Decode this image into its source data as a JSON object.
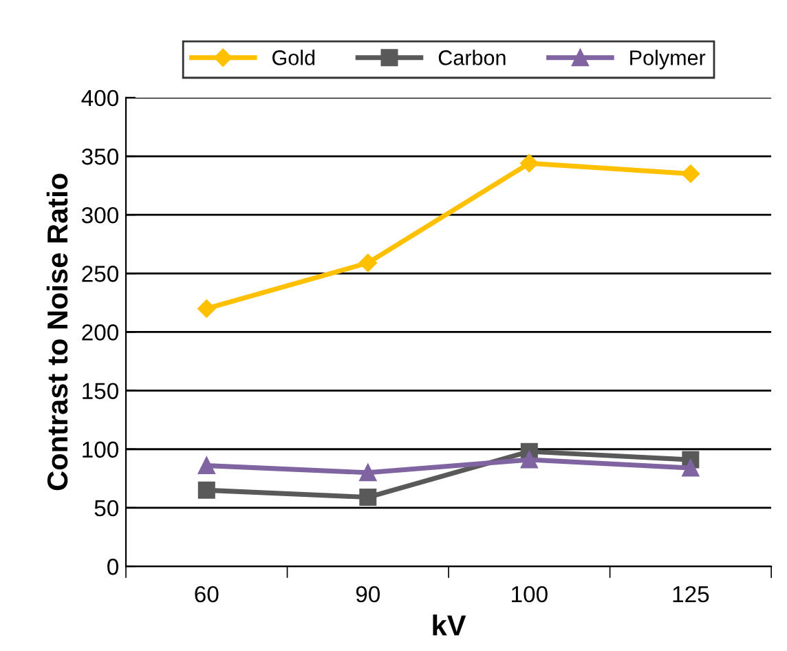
{
  "chart_data": {
    "type": "line",
    "xlabel": "kV",
    "ylabel": "Contrast to Noise Ratio",
    "categories": [
      "60",
      "90",
      "100",
      "125"
    ],
    "series": [
      {
        "name": "Gold",
        "color": "#ffc000",
        "marker": "diamond",
        "values": [
          220,
          259,
          344,
          335
        ]
      },
      {
        "name": "Carbon",
        "color": "#595959",
        "marker": "square",
        "values": [
          65,
          59,
          98,
          91
        ]
      },
      {
        "name": "Polymer",
        "color": "#8064a2",
        "marker": "triangle",
        "values": [
          86,
          80,
          91,
          84
        ]
      }
    ],
    "ylim": [
      0,
      400
    ],
    "yticks": [
      0,
      50,
      100,
      150,
      200,
      250,
      300,
      350,
      400
    ],
    "grid": "y",
    "legend": "top",
    "line_style": "solid"
  }
}
